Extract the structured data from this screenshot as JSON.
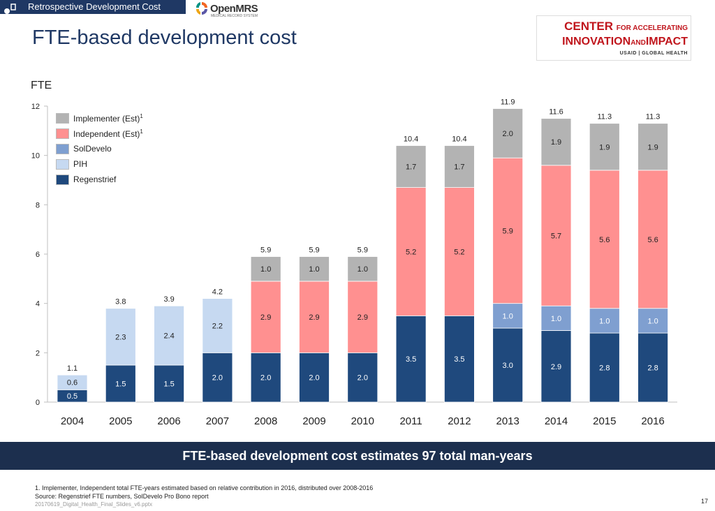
{
  "header": {
    "section_tab": "Retrospective Development Cost",
    "openmrs_logo": "OpenMRS",
    "openmrs_tagline": "MEDICAL RECORD SYSTEM",
    "page_title": "FTE-based development cost",
    "partner_logo": {
      "line1": "CENTER",
      "line1_small": "FOR ACCELERATING",
      "line2a": "INNOVATION",
      "line2_small": "AND",
      "line2b": "IMPACT",
      "line3": "USAID | GLOBAL HEALTH"
    }
  },
  "chart_data": {
    "type": "bar",
    "stacked": true,
    "ylabel": "FTE",
    "ylim": [
      0,
      12
    ],
    "yticks": [
      0,
      2,
      4,
      6,
      8,
      10,
      12
    ],
    "categories": [
      "2004",
      "2005",
      "2006",
      "2007",
      "2008",
      "2009",
      "2010",
      "2011",
      "2012",
      "2013",
      "2014",
      "2015",
      "2016"
    ],
    "totals": [
      "1.1",
      "3.8",
      "3.9",
      "4.2",
      "5.9",
      "5.9",
      "5.9",
      "10.4",
      "10.4",
      "11.9",
      "11.6",
      "11.3",
      "11.3"
    ],
    "series": [
      {
        "name": "Regenstrief",
        "color": "#1f497d",
        "label_color": "#ffffff",
        "values": [
          0.5,
          1.5,
          1.5,
          2.0,
          2.0,
          2.0,
          2.0,
          3.5,
          3.5,
          3.0,
          2.9,
          2.8,
          2.8
        ],
        "labels": [
          "0.5",
          "1.5",
          "1.5",
          "2.0",
          "2.0",
          "2.0",
          "2.0",
          "3.5",
          "3.5",
          "3.0",
          "2.9",
          "2.8",
          "2.8"
        ]
      },
      {
        "name": "PIH",
        "color": "#c6d9f1",
        "label_color": "#222222",
        "values": [
          0.6,
          2.3,
          2.4,
          2.2,
          0,
          0,
          0,
          0,
          0,
          0,
          0,
          0,
          0
        ],
        "labels": [
          "0.6",
          "2.3",
          "2.4",
          "2.2",
          "",
          "",
          "",
          "",
          "",
          "",
          "",
          "",
          ""
        ]
      },
      {
        "name": "SolDevelo",
        "color": "#7f9fd0",
        "label_color": "#ffffff",
        "values": [
          0,
          0,
          0,
          0,
          0,
          0,
          0,
          0,
          0,
          1.0,
          1.0,
          1.0,
          1.0
        ],
        "labels": [
          "",
          "",
          "",
          "",
          "",
          "",
          "",
          "",
          "",
          "1.0",
          "1.0",
          "1.0",
          "1.0"
        ]
      },
      {
        "name": "Independent (Est)",
        "sup": "1",
        "color": "#ff9090",
        "label_color": "#222222",
        "values": [
          0,
          0,
          0,
          0,
          2.9,
          2.9,
          2.9,
          5.2,
          5.2,
          5.9,
          5.7,
          5.6,
          5.6
        ],
        "labels": [
          "",
          "",
          "",
          "",
          "2.9",
          "2.9",
          "2.9",
          "5.2",
          "5.2",
          "5.9",
          "5.7",
          "5.6",
          "5.6"
        ]
      },
      {
        "name": "Implementer (Est)",
        "sup": "1",
        "color": "#b3b3b3",
        "label_color": "#222222",
        "values": [
          0,
          0,
          0,
          0,
          1.0,
          1.0,
          1.0,
          1.7,
          1.7,
          2.0,
          1.9,
          1.9,
          1.9
        ],
        "labels": [
          "",
          "",
          "",
          "",
          "1.0",
          "1.0",
          "1.0",
          "1.7",
          "1.7",
          "2.0",
          "1.9",
          "1.9",
          "1.9"
        ]
      }
    ],
    "legend_order": [
      "Implementer (Est)",
      "Independent (Est)",
      "SolDevelo",
      "PIH",
      "Regenstrief"
    ]
  },
  "banner": "FTE-based development cost estimates 97 total man-years",
  "footnotes": {
    "note1": "1. Implementer, Independent total FTE-years estimated based on relative contribution in 2016, distributed over 2008-2016",
    "source": "Source: Regenstrief FTE numbers, SolDevelo Pro Bono report",
    "file": "20170619_Digital_Health_Final_Slides_v6.pptx"
  },
  "page_number": "17"
}
